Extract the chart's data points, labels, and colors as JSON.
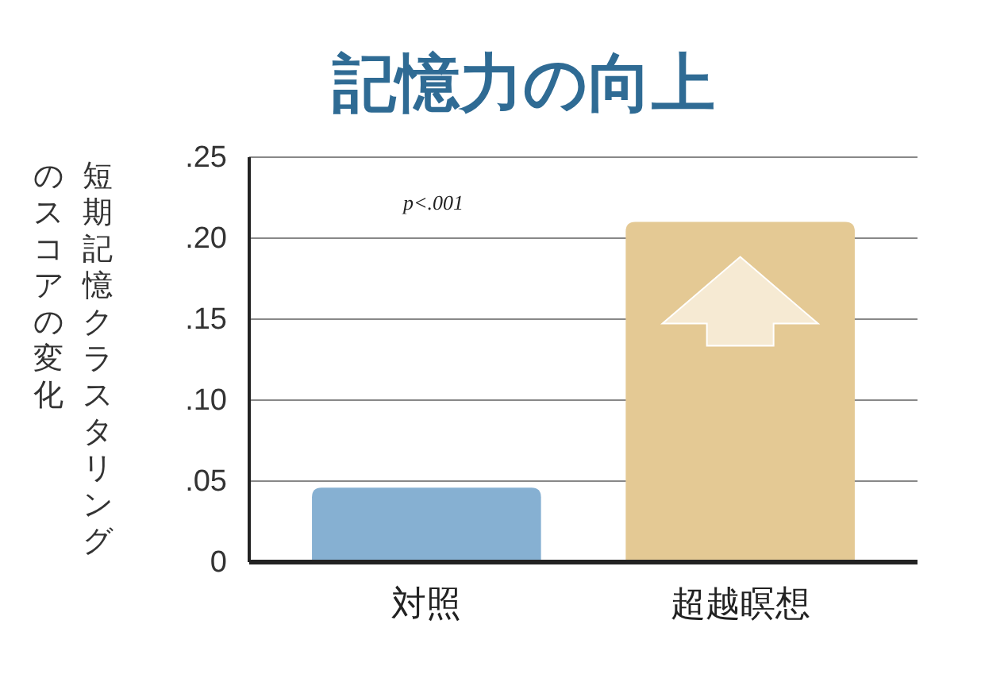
{
  "chart_data": {
    "type": "bar",
    "title": "記憶力の向上",
    "ylabel": "短期記憶クラスタリングのスコアの変化",
    "categories": [
      "対照",
      "超越瞑想"
    ],
    "values": [
      0.046,
      0.21
    ],
    "colors": [
      "#86b0d2",
      "#e4c994"
    ],
    "ylim": [
      0,
      0.25
    ],
    "yticks": [
      {
        "value": 0,
        "label": "0"
      },
      {
        "value": 0.05,
        "label": ".05"
      },
      {
        "value": 0.1,
        "label": ".10"
      },
      {
        "value": 0.15,
        "label": ".15"
      },
      {
        "value": 0.2,
        "label": ".20"
      },
      {
        "value": 0.25,
        "label": ".25"
      }
    ],
    "grid": "y",
    "annotations": [
      "p<.001"
    ]
  }
}
